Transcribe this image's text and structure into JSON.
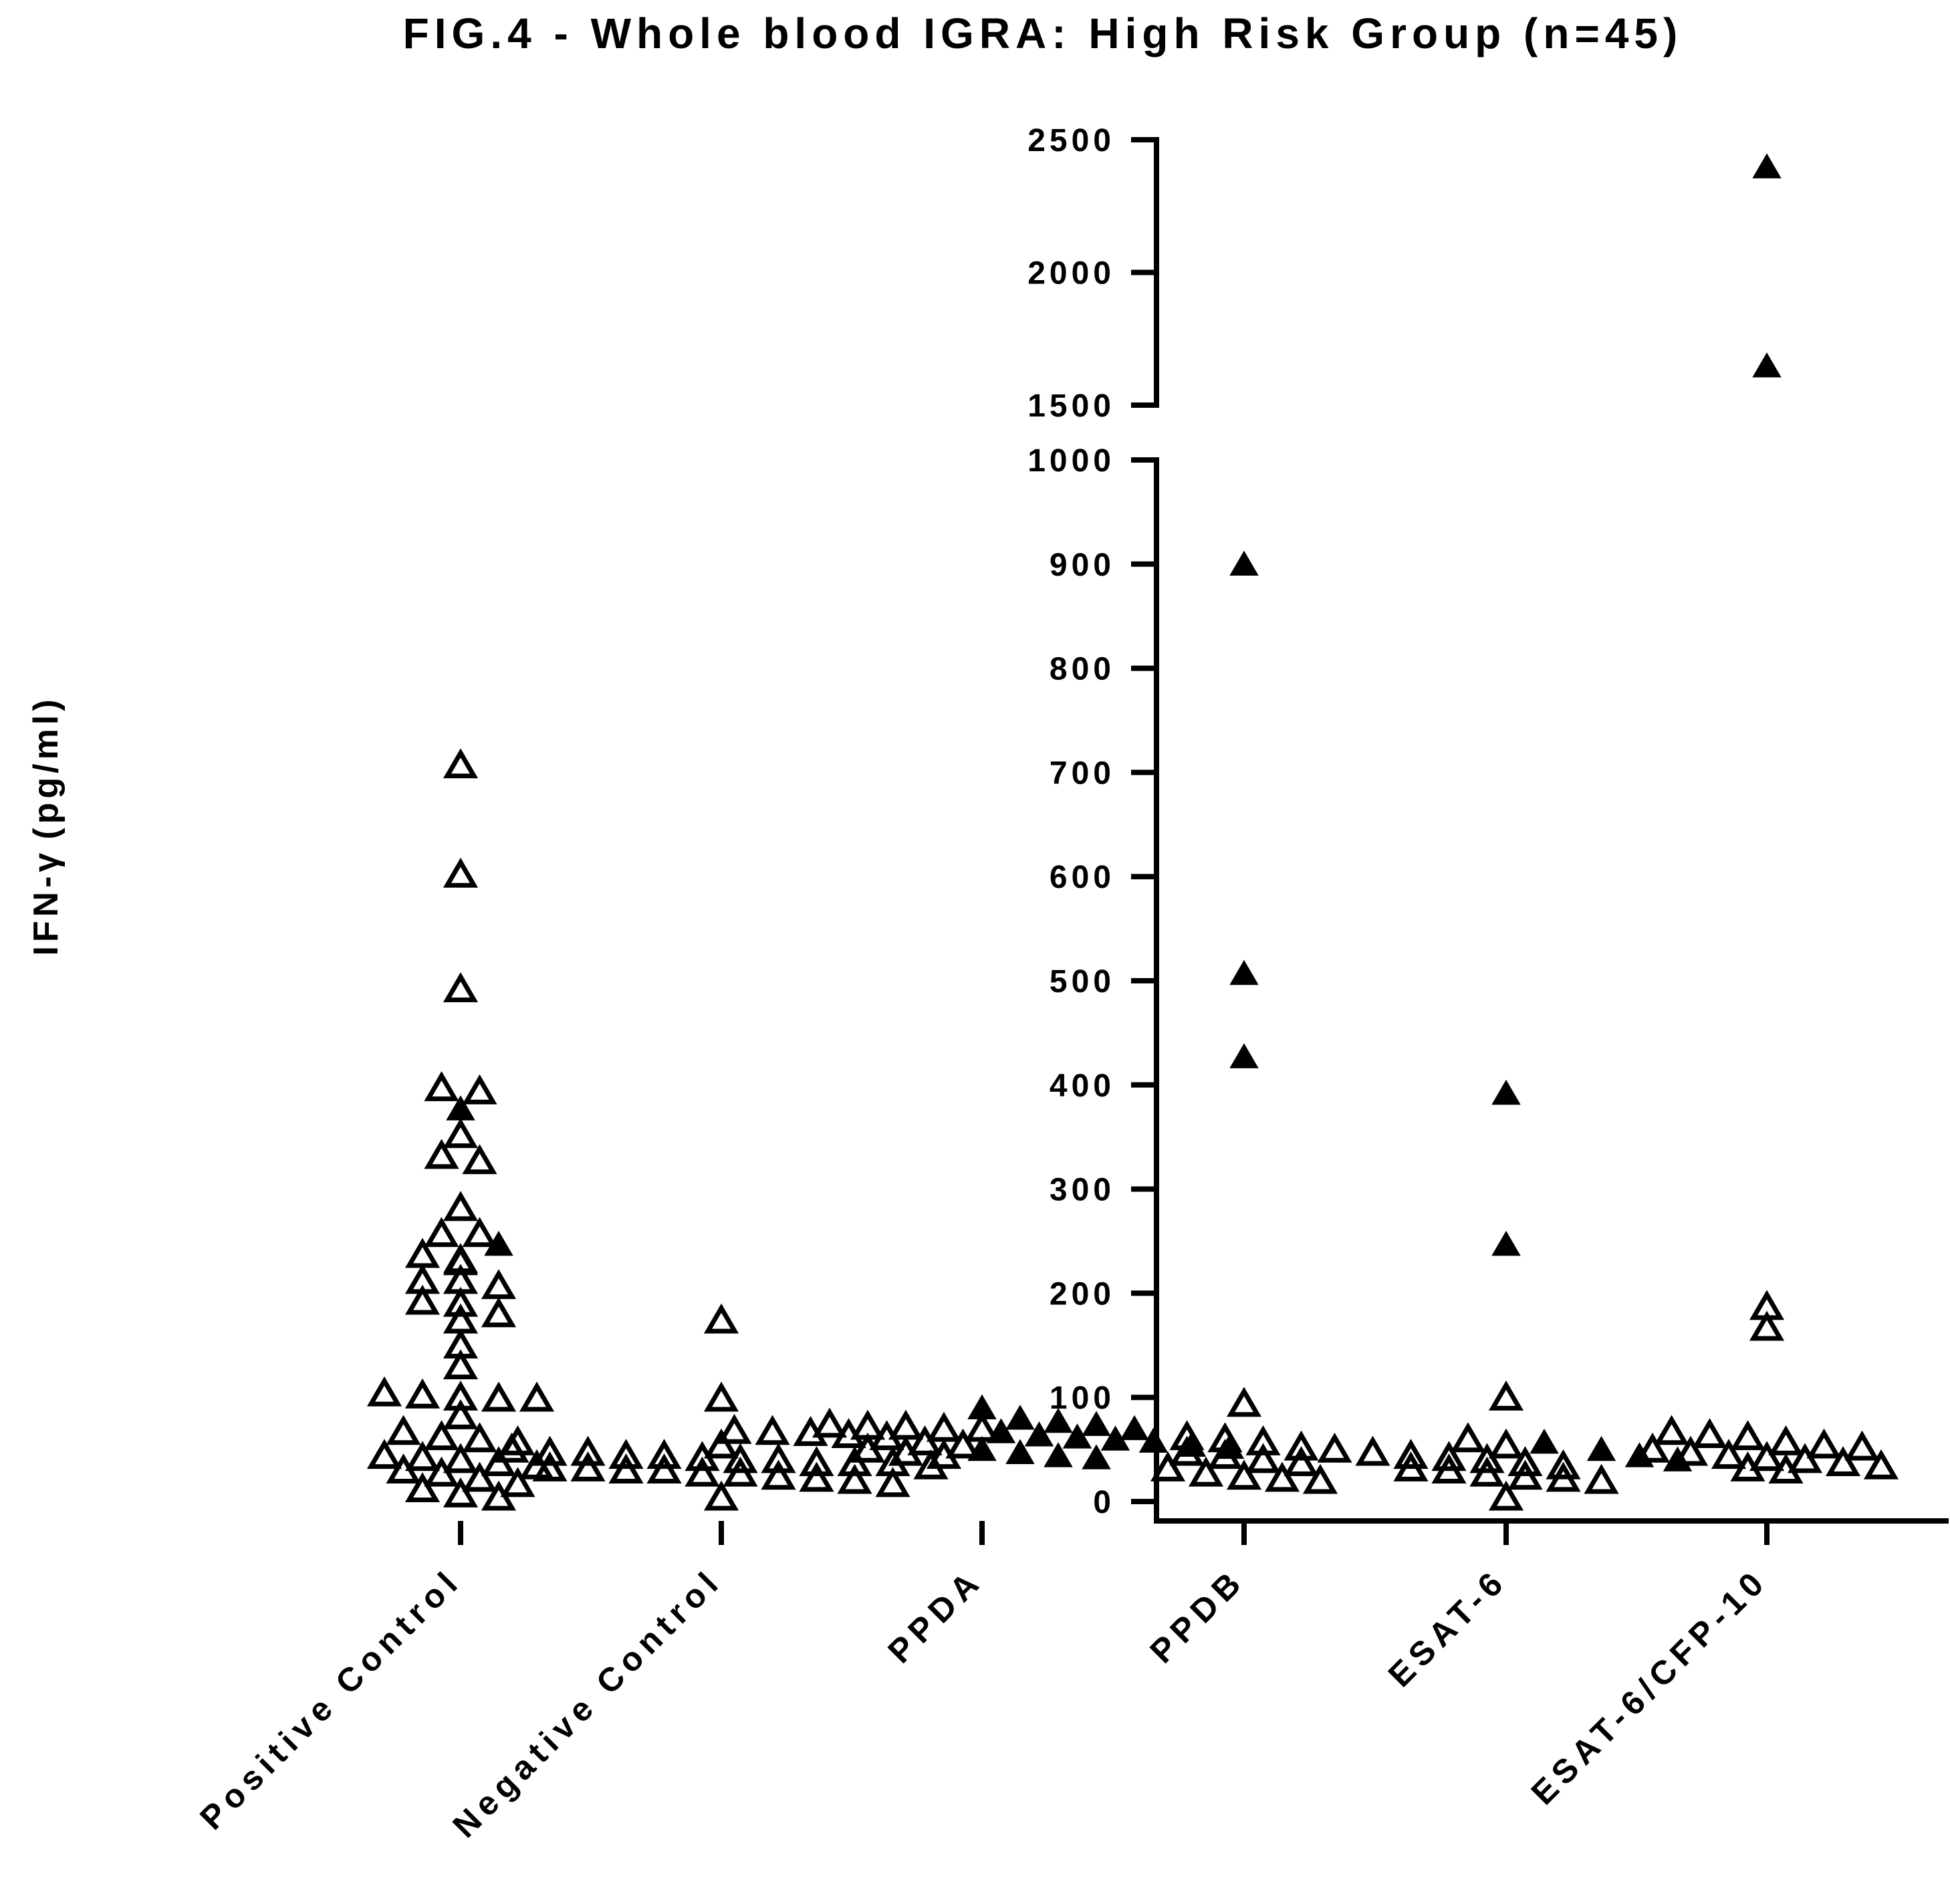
{
  "chart_data": {
    "type": "scatter",
    "title": "FIG.4 - Whole blood IGRA: High Risk Group (n=45)",
    "ylabel_text": "IFN-",
    "ylabel_symbol": "γ",
    "ylabel_unit": "(pg/ml)",
    "ylim": [
      0,
      2500
    ],
    "axis_break": [
      1000,
      1500
    ],
    "y_ticks_lower": [
      "0",
      "100",
      "200",
      "300",
      "400",
      "500",
      "600",
      "700",
      "800",
      "900",
      "1000"
    ],
    "y_ticks_upper": [
      "1500",
      "2000",
      "2500"
    ],
    "categories": [
      "Positive Control",
      "Negative Control",
      "PPDA",
      "PPDB",
      "ESAT-6",
      "ESAT-6/CFP-10"
    ],
    "marker_legend": {
      "open": "open triangle",
      "filled": "filled triangle"
    },
    "groups": [
      {
        "category": "Positive Control",
        "open": [
          705,
          600,
          490,
          395,
          392,
          350,
          330,
          325,
          280,
          255,
          255,
          235,
          230,
          228,
          210,
          210,
          205,
          190,
          188,
          178,
          172,
          148,
          128,
          102,
          100,
          98,
          97,
          97,
          80,
          65,
          60,
          58,
          55,
          42,
          40,
          38,
          35,
          32,
          28,
          25,
          20,
          15,
          10,
          5,
          2
        ],
        "filled": [
          375,
          245
        ]
      },
      {
        "category": "Negative Control",
        "open": [
          172,
          97,
          52,
          48,
          45,
          45,
          42,
          42,
          40,
          38,
          38,
          35,
          35,
          35,
          32,
          30,
          30,
          28,
          28,
          25,
          25,
          22,
          20,
          18,
          15,
          2
        ],
        "filled": []
      },
      {
        "category": "PPDA",
        "open": [
          72,
          70,
          70,
          68,
          68,
          66,
          65,
          64,
          62,
          60,
          55,
          52,
          48,
          45,
          42
        ],
        "filled": [
          88,
          78,
          75,
          72,
          68,
          65,
          62,
          60,
          58,
          56,
          52,
          50,
          48,
          45,
          42,
          40
        ]
      },
      {
        "category": "PPDB",
        "open": [
          92,
          60,
          58,
          55,
          50,
          45,
          42,
          38,
          35,
          30,
          25,
          22,
          20,
          18
        ],
        "filled": [
          898,
          505,
          425
        ]
      },
      {
        "category": "ESAT-6",
        "open": [
          98,
          58,
          52,
          48,
          45,
          42,
          40,
          38,
          35,
          32,
          30,
          28,
          25,
          22,
          20,
          18,
          2
        ],
        "filled": [
          390,
          245,
          55,
          48,
          42,
          38
        ]
      },
      {
        "category": "ESAT-6/CFP-10",
        "open": [
          185,
          165,
          65,
          62,
          60,
          55,
          52,
          50,
          48,
          45,
          42,
          40,
          38,
          35,
          32,
          30,
          28
        ],
        "filled": [
          2390,
          1640
        ]
      }
    ]
  }
}
